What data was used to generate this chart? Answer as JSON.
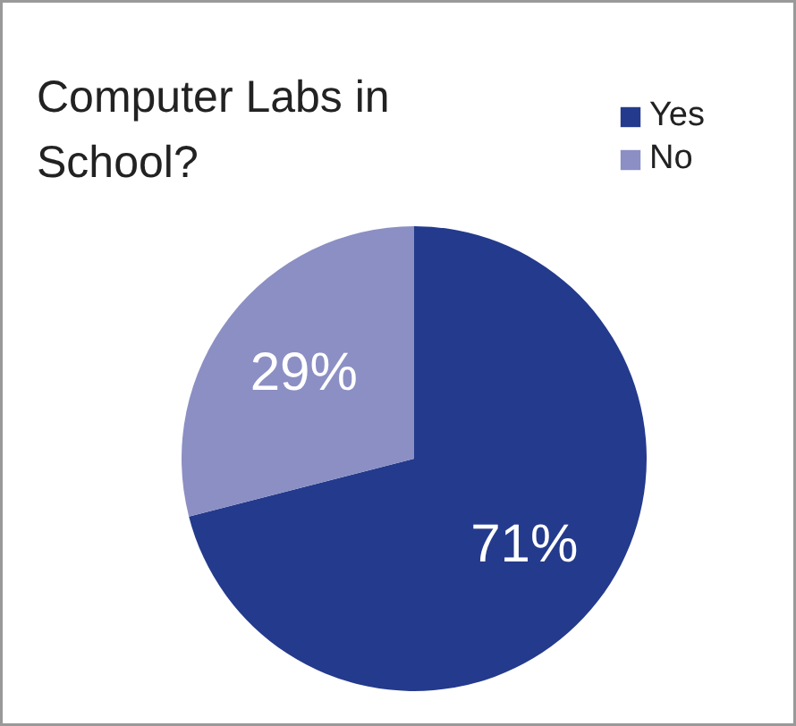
{
  "chart_data": {
    "type": "pie",
    "title": "Computer Labs in School?",
    "categories": [
      "Yes",
      "No"
    ],
    "values": [
      71,
      29
    ],
    "colors": [
      "#243a8c",
      "#8b8fc4"
    ],
    "value_labels": [
      "71%",
      "29%"
    ],
    "legend": "top right"
  }
}
